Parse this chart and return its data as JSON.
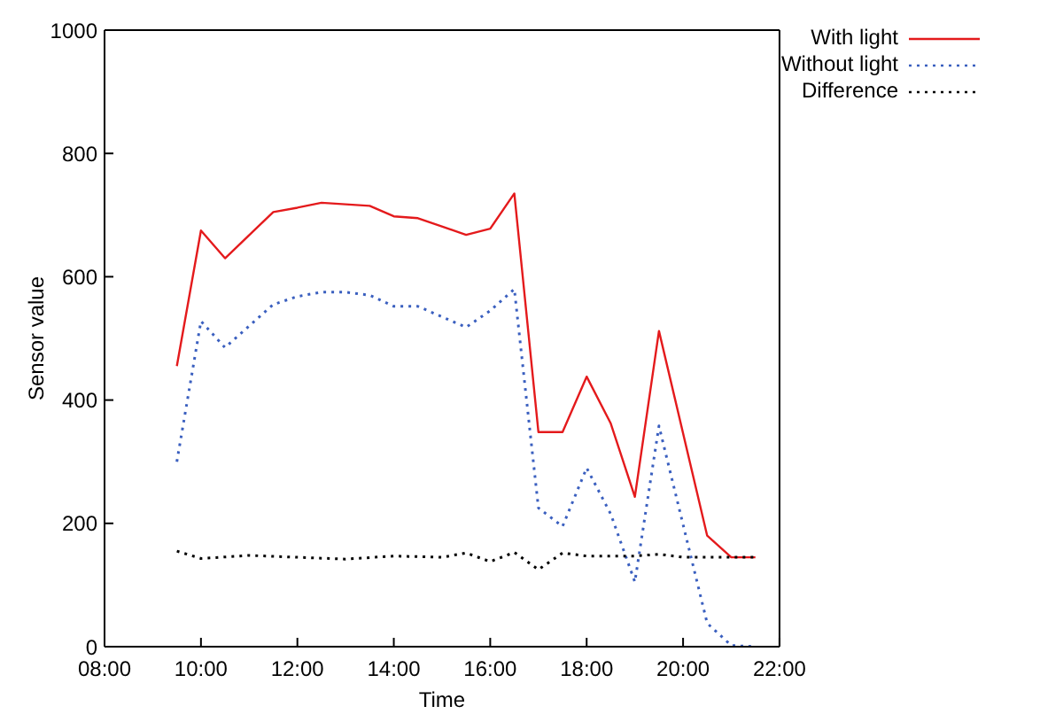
{
  "chart_data": {
    "type": "line",
    "xlabel": "Time",
    "ylabel": "Sensor value",
    "xlim": [
      8,
      22
    ],
    "xticks": [
      {
        "value": 8,
        "label": "08:00"
      },
      {
        "value": 10,
        "label": "10:00"
      },
      {
        "value": 12,
        "label": "12:00"
      },
      {
        "value": 14,
        "label": "14:00"
      },
      {
        "value": 16,
        "label": "16:00"
      },
      {
        "value": 18,
        "label": "18:00"
      },
      {
        "value": 20,
        "label": "20:00"
      },
      {
        "value": 22,
        "label": "22:00"
      }
    ],
    "ylim": [
      0,
      1000
    ],
    "yticks": [
      0,
      200,
      400,
      600,
      800,
      1000
    ],
    "grid": false,
    "legend": "top right",
    "marker": "none",
    "series": [
      {
        "name": "With light",
        "color": "#e41a1c",
        "line_style": "solid",
        "x": [
          9.5,
          10,
          10.5,
          11.5,
          12,
          12.5,
          13.5,
          14,
          14.5,
          15.5,
          16,
          16.5,
          17,
          17.5,
          18,
          18.5,
          19,
          19.5,
          20.5,
          21,
          21.5
        ],
        "values": [
          455,
          675,
          630,
          705,
          712,
          720,
          715,
          698,
          695,
          668,
          678,
          735,
          348,
          348,
          438,
          362,
          243,
          512,
          180,
          145,
          145
        ]
      },
      {
        "name": "Without light",
        "color": "#3a5fbf",
        "line_style": "dotted",
        "x": [
          9.5,
          10,
          10.5,
          11.5,
          12,
          12.5,
          13,
          13.5,
          14,
          14.5,
          15.5,
          16,
          16.5,
          17,
          17.5,
          18,
          18.5,
          19,
          19.5,
          20.5,
          21,
          21.5
        ],
        "values": [
          300,
          528,
          485,
          555,
          568,
          575,
          575,
          570,
          552,
          552,
          518,
          545,
          580,
          225,
          195,
          290,
          215,
          105,
          358,
          38,
          2,
          0
        ]
      },
      {
        "name": "Difference",
        "color": "#000000",
        "line_style": "dotted",
        "x": [
          9.5,
          10,
          11,
          12,
          13,
          14,
          15,
          15.5,
          16,
          16.5,
          17,
          17.5,
          18,
          19,
          19.5,
          20,
          21,
          21.5
        ],
        "values": [
          155,
          143,
          148,
          145,
          142,
          147,
          145,
          152,
          138,
          153,
          125,
          152,
          147,
          147,
          150,
          145,
          145,
          145
        ]
      }
    ]
  }
}
